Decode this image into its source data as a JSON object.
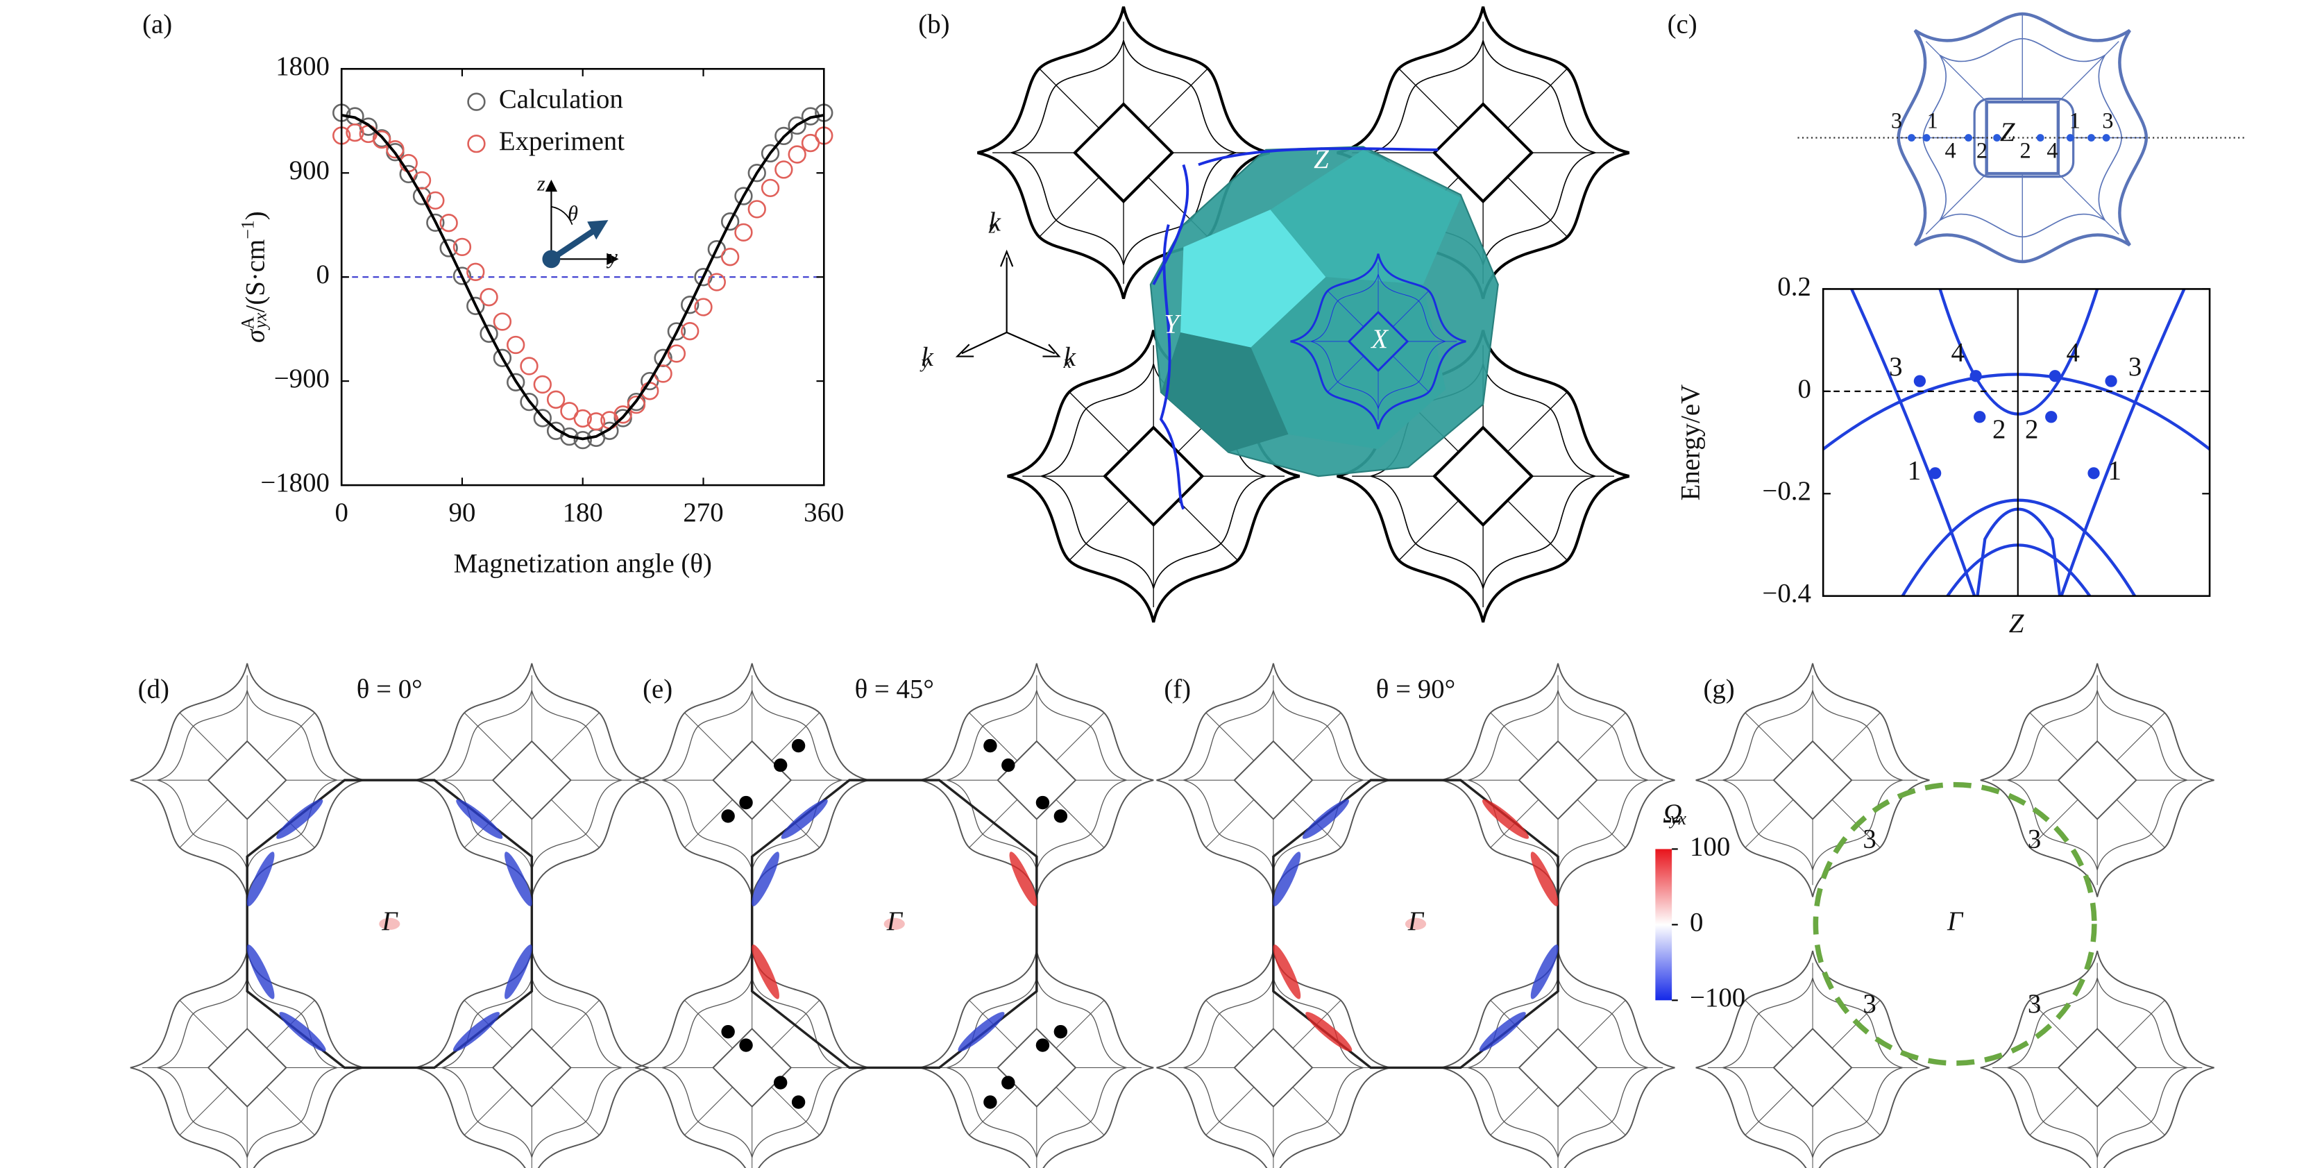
{
  "chart_data": [
    {
      "type": "scatter",
      "label": "(a)",
      "ylabel": [
        "σ",
        "A",
        "yx",
        "/(S·cm",
        "−1",
        ")"
      ],
      "xlabel": "Magnetization angle (θ)",
      "xlim": [
        0,
        360
      ],
      "xticks": [
        0,
        90,
        180,
        270,
        360
      ],
      "ylim": [
        -1800,
        1800
      ],
      "yticks": [
        {
          "value": -1800,
          "label": "−1800"
        },
        {
          "value": -900,
          "label": "−900"
        },
        0,
        900,
        1800
      ],
      "legend": "upper right",
      "reference_line": 0,
      "x": [
        0,
        10,
        20,
        30,
        40,
        50,
        60,
        70,
        80,
        90,
        100,
        110,
        120,
        130,
        140,
        150,
        160,
        170,
        180,
        190,
        200,
        210,
        220,
        230,
        240,
        250,
        260,
        270,
        280,
        290,
        300,
        310,
        320,
        330,
        340,
        350,
        360
      ],
      "series": [
        {
          "name": "Calculation",
          "color": "#666666",
          "marker": "circle",
          "values": [
            1420,
            1390,
            1300,
            1200,
            1080,
            890,
            700,
            470,
            250,
            10,
            -250,
            -490,
            -700,
            -910,
            -1080,
            -1220,
            -1330,
            -1380,
            -1410,
            -1390,
            -1330,
            -1220,
            -1080,
            -900,
            -700,
            -470,
            -240,
            0,
            240,
            480,
            700,
            900,
            1070,
            1220,
            1310,
            1390,
            1420
          ]
        },
        {
          "name": "Experiment",
          "color": "#e0605a",
          "marker": "circle",
          "values": [
            1223,
            1249,
            1238,
            1189,
            1104,
            985,
            836,
            662,
            468,
            260,
            44,
            -174,
            -386,
            -587,
            -770,
            -929,
            -1060,
            -1159,
            -1223,
            -1249,
            -1238,
            -1189,
            -1104,
            -985,
            -836,
            -662,
            -468,
            -260,
            -44,
            174,
            386,
            587,
            770,
            929,
            1060,
            1159,
            1223
          ]
        },
        {
          "color": "#000000",
          "marker": "line",
          "values": [
            1400,
            1379,
            1316,
            1212,
            1072,
            900,
            700,
            479,
            243,
            0,
            -243,
            -479,
            -700,
            -900,
            -1072,
            -1212,
            -1316,
            -1379,
            -1400,
            -1379,
            -1316,
            -1212,
            -1072,
            -900,
            -700,
            -479,
            -243,
            0,
            243,
            479,
            700,
            900,
            1072,
            1212,
            1316,
            1379,
            1400
          ]
        }
      ],
      "inset": {
        "labels": [
          "z",
          "θ",
          "y"
        ]
      }
    },
    {
      "type": "band",
      "label": "(c)",
      "ylabel": "Energy/eV",
      "xlabel": "Z",
      "xlim": [
        -1,
        1
      ],
      "ylim": [
        -0.4,
        0.2
      ],
      "yticks": [
        {
          "value": -0.4,
          "label": "−0.4"
        },
        {
          "value": -0.2,
          "label": "−0.2"
        },
        0,
        0.2
      ],
      "reference_line": 0,
      "color": "#1f3fdd",
      "points": {
        "labels": [
          "3",
          "4",
          "2",
          "1",
          "4",
          "3",
          "2",
          "1"
        ],
        "x": [
          -0.5,
          -0.21,
          -0.19,
          -0.42,
          0.2,
          0.49,
          0.18,
          0.4
        ],
        "values": [
          0.02,
          0.03,
          -0.05,
          -0.16,
          0.03,
          0.02,
          -0.05,
          -0.16
        ]
      }
    }
  ],
  "figure": {
    "b": {
      "label": "(b)",
      "points": [
        "Z",
        "Y",
        "X"
      ],
      "axes": [
        [
          "k",
          "z"
        ],
        [
          "k",
          "y"
        ],
        [
          "k",
          "x"
        ]
      ]
    },
    "c_top": {
      "center": "Z",
      "labels": [
        "3",
        "1",
        "4",
        "2",
        "2",
        "4",
        "1",
        "3"
      ]
    },
    "maps": [
      {
        "label": "(d)",
        "title": "θ = 0°",
        "center": "Γ"
      },
      {
        "label": "(e)",
        "title": "θ = 45°",
        "center": "Γ"
      },
      {
        "label": "(f)",
        "title": "θ = 90°",
        "center": "Γ"
      },
      {
        "label": "(g)",
        "center": "Γ",
        "labels": [
          "3",
          "3",
          "3",
          "3"
        ]
      }
    ],
    "colorbar": {
      "label": [
        "Ω",
        "yx"
      ],
      "lim": [
        -100,
        100
      ],
      "ticks": [
        100,
        0,
        {
          "value": -100,
          "label": "−100"
        }
      ]
    }
  }
}
